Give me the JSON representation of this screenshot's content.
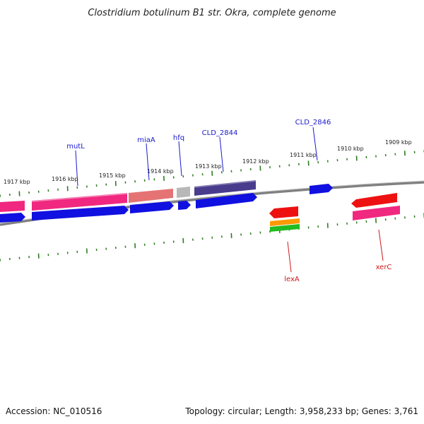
{
  "title": "Clostridium botulinum B1 str. Okra, complete genome",
  "accession_text": "Accession: NC_010516",
  "summary_text": "Topology: circular; Length: 3,958,233 bp; Genes: 3,761",
  "kbp_labels": [
    "1917 kbp",
    "1916 kbp",
    "1915 kbp",
    "1914 kbp",
    "1913 kbp",
    "1912 kbp",
    "1911 kbp",
    "1910 kbp",
    "1909 kbp"
  ],
  "genes_top": [
    "mutL",
    "miaA",
    "hfq",
    "CLD_2844",
    "CLD_2846"
  ],
  "genes_bottom": [
    "lexA",
    "xerC"
  ],
  "colors": {
    "backbone": "#808080",
    "tick": "#2e7d1f",
    "blue": "#1010e0",
    "pink": "#f0287f",
    "salmon": "#e57373",
    "gray": "#b8b8b8",
    "purple": "#4a3c8c",
    "red": "#ee1111",
    "orange": "#ff9900",
    "green": "#22bb22",
    "label_blue": "#1a1acc",
    "label_red": "#cc1a1a"
  }
}
